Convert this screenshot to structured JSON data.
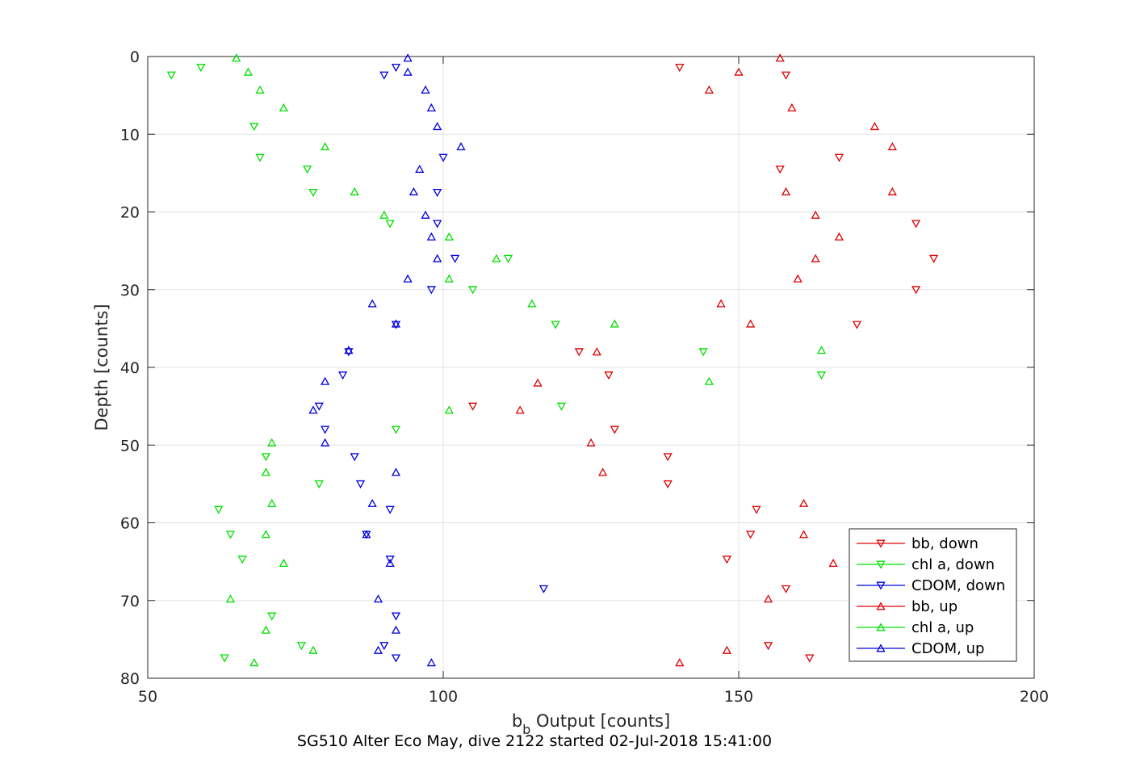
{
  "chart_data": {
    "type": "scatter",
    "title": "",
    "caption": "SG510 Alter Eco May, dive 2122 started 02-Jul-2018 15:41:00",
    "xlabel_main": "b",
    "xlabel_sub": "b",
    "xlabel_rest": " Output [counts]",
    "ylabel": "Depth [counts]",
    "xlim": [
      50,
      200
    ],
    "ylim": [
      0,
      80
    ],
    "y_reversed": true,
    "grid": true,
    "legend_position": "bottom-right",
    "xticks": [
      "50",
      "100",
      "150",
      "200"
    ],
    "yticks": [
      "0",
      "10",
      "20",
      "30",
      "40",
      "50",
      "60",
      "70",
      "80"
    ],
    "series": [
      {
        "name": "bb, down",
        "color": "#e00000",
        "marker": "triangle-down",
        "points": [
          [
            140,
            1.4
          ],
          [
            158,
            2.4
          ],
          [
            167,
            13
          ],
          [
            157,
            14.5
          ],
          [
            180,
            21.5
          ],
          [
            183,
            26
          ],
          [
            180,
            30
          ],
          [
            170,
            34.5
          ],
          [
            123,
            38
          ],
          [
            128,
            41
          ],
          [
            105,
            45
          ],
          [
            129,
            48
          ],
          [
            138,
            51.5
          ],
          [
            138,
            55
          ],
          [
            153,
            58.3
          ],
          [
            152,
            61.5
          ],
          [
            148,
            64.7
          ],
          [
            158,
            68.5
          ],
          [
            155,
            75.8
          ],
          [
            162,
            77.4
          ]
        ]
      },
      {
        "name": "chl a, down",
        "color": "#00e000",
        "marker": "triangle-down",
        "points": [
          [
            59,
            1.4
          ],
          [
            54,
            2.4
          ],
          [
            68,
            9
          ],
          [
            69,
            13
          ],
          [
            77,
            14.5
          ],
          [
            78,
            17.5
          ],
          [
            91,
            21.5
          ],
          [
            111,
            26
          ],
          [
            105,
            30
          ],
          [
            119,
            34.5
          ],
          [
            144,
            38
          ],
          [
            164,
            41
          ],
          [
            120,
            45
          ],
          [
            92,
            48
          ],
          [
            70,
            51.5
          ],
          [
            79,
            55
          ],
          [
            62,
            58.3
          ],
          [
            64,
            61.5
          ],
          [
            66,
            64.7
          ],
          [
            71,
            72
          ],
          [
            76,
            75.8
          ],
          [
            63,
            77.4
          ]
        ]
      },
      {
        "name": "CDOM, down",
        "color": "#0000e0",
        "marker": "triangle-down",
        "points": [
          [
            92,
            1.4
          ],
          [
            90,
            2.4
          ],
          [
            100,
            13
          ],
          [
            99,
            17.5
          ],
          [
            99,
            21.5
          ],
          [
            102,
            26
          ],
          [
            98,
            30
          ],
          [
            92,
            34.5
          ],
          [
            84,
            38
          ],
          [
            83,
            41
          ],
          [
            79,
            45
          ],
          [
            80,
            48
          ],
          [
            85,
            51.5
          ],
          [
            86,
            55
          ],
          [
            91,
            58.3
          ],
          [
            87,
            61.5
          ],
          [
            91,
            64.7
          ],
          [
            117,
            68.5
          ],
          [
            92,
            72
          ],
          [
            90,
            75.8
          ],
          [
            92,
            77.4
          ]
        ]
      },
      {
        "name": "bb, up",
        "color": "#e00000",
        "marker": "triangle-up",
        "points": [
          [
            157,
            0.2
          ],
          [
            150,
            2
          ],
          [
            145,
            4.3
          ],
          [
            159,
            6.6
          ],
          [
            173,
            9
          ],
          [
            176,
            11.6
          ],
          [
            176,
            17.4
          ],
          [
            158,
            17.4
          ],
          [
            163,
            20.4
          ],
          [
            167,
            23.2
          ],
          [
            163,
            26
          ],
          [
            160,
            28.6
          ],
          [
            147,
            31.8
          ],
          [
            152,
            34.4
          ],
          [
            126,
            38
          ],
          [
            116,
            42
          ],
          [
            113,
            45.5
          ],
          [
            125,
            49.7
          ],
          [
            127,
            53.5
          ],
          [
            161,
            57.5
          ],
          [
            161,
            61.5
          ],
          [
            166,
            65.2
          ],
          [
            155,
            69.8
          ],
          [
            148,
            76.4
          ],
          [
            140,
            78
          ]
        ]
      },
      {
        "name": "chl a, up",
        "color": "#00e000",
        "marker": "triangle-up",
        "points": [
          [
            65,
            0.2
          ],
          [
            67,
            2
          ],
          [
            69,
            4.3
          ],
          [
            73,
            6.6
          ],
          [
            80,
            11.6
          ],
          [
            85,
            17.4
          ],
          [
            90,
            20.4
          ],
          [
            101,
            23.2
          ],
          [
            109,
            26
          ],
          [
            101,
            28.6
          ],
          [
            115,
            31.8
          ],
          [
            129,
            34.4
          ],
          [
            164,
            37.8
          ],
          [
            145,
            41.8
          ],
          [
            101,
            45.5
          ],
          [
            71,
            49.7
          ],
          [
            70,
            53.5
          ],
          [
            71,
            57.5
          ],
          [
            70,
            61.5
          ],
          [
            73,
            65.2
          ],
          [
            64,
            69.8
          ],
          [
            70,
            73.8
          ],
          [
            78,
            76.4
          ],
          [
            68,
            78
          ]
        ]
      },
      {
        "name": "CDOM, up",
        "color": "#0000e0",
        "marker": "triangle-up",
        "points": [
          [
            94,
            0.2
          ],
          [
            94,
            2
          ],
          [
            97,
            4.3
          ],
          [
            98,
            6.6
          ],
          [
            99,
            9
          ],
          [
            103,
            11.6
          ],
          [
            96,
            14.5
          ],
          [
            95,
            17.4
          ],
          [
            97,
            20.4
          ],
          [
            98,
            23.2
          ],
          [
            99,
            26
          ],
          [
            94,
            28.6
          ],
          [
            88,
            31.8
          ],
          [
            92,
            34.4
          ],
          [
            84,
            37.8
          ],
          [
            80,
            41.8
          ],
          [
            78,
            45.5
          ],
          [
            80,
            49.7
          ],
          [
            92,
            53.5
          ],
          [
            88,
            57.5
          ],
          [
            87,
            61.5
          ],
          [
            91,
            65.2
          ],
          [
            89,
            69.8
          ],
          [
            92,
            73.8
          ],
          [
            89,
            76.4
          ],
          [
            98,
            78
          ]
        ]
      }
    ]
  }
}
